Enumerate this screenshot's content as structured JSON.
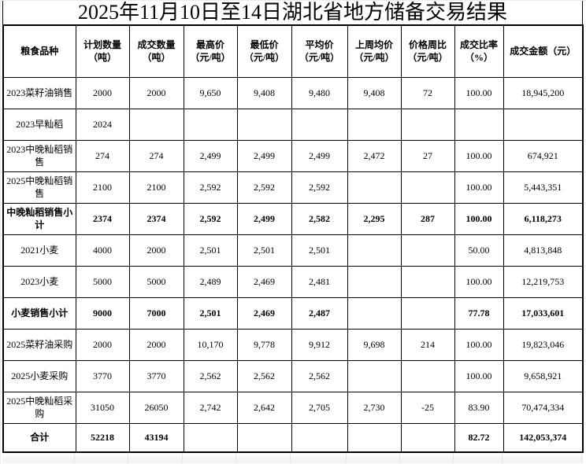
{
  "title": "2025年11月10日至14日湖北省地方储备交易结果",
  "colors": {
    "text": "#000000",
    "table_border": "#000000",
    "background": "#ffffff",
    "grid_remnant": "#e6e6e6"
  },
  "table": {
    "headers": [
      {
        "lines": [
          "粮食品种"
        ]
      },
      {
        "lines": [
          "计划数量",
          "（吨）"
        ]
      },
      {
        "lines": [
          "成交数量",
          "（吨）"
        ]
      },
      {
        "lines": [
          "最高价",
          "（元/吨）"
        ]
      },
      {
        "lines": [
          "最低价",
          "（元/吨）"
        ]
      },
      {
        "lines": [
          "平均价",
          "（元/吨）"
        ]
      },
      {
        "lines": [
          "上周均价",
          "（元/吨）"
        ]
      },
      {
        "lines": [
          "价格周比",
          "（元/吨）"
        ]
      },
      {
        "lines": [
          "成交比率",
          "（%）"
        ]
      },
      {
        "lines": [
          "成交金额（元）"
        ]
      }
    ],
    "rows": [
      {
        "bold": false,
        "cells": [
          "2023菜籽油销售",
          "2000",
          "2000",
          "9,650",
          "9,408",
          "9,480",
          "9,408",
          "72",
          "100.00",
          "18,945,200"
        ]
      },
      {
        "bold": false,
        "cells": [
          "2023早籼稻",
          "2024",
          "",
          "",
          "",
          "",
          "",
          "",
          "",
          ""
        ]
      },
      {
        "bold": false,
        "cells": [
          "2023中晚籼稻销售",
          "274",
          "274",
          "2,499",
          "2,499",
          "2,499",
          "2,472",
          "27",
          "100.00",
          "674,921"
        ]
      },
      {
        "bold": false,
        "cells": [
          "2025中晚籼稻销售",
          "2100",
          "2100",
          "2,592",
          "2,592",
          "2,592",
          "",
          "",
          "100.00",
          "5,443,351"
        ]
      },
      {
        "bold": true,
        "cells": [
          "中晚籼稻销售小计",
          "2374",
          "2374",
          "2,592",
          "2,499",
          "2,582",
          "2,295",
          "287",
          "100.00",
          "6,118,273"
        ]
      },
      {
        "bold": false,
        "cells": [
          "2021小麦",
          "4000",
          "2000",
          "2,501",
          "2,501",
          "2,501",
          "",
          "",
          "50.00",
          "4,813,848"
        ]
      },
      {
        "bold": false,
        "cells": [
          "2023小麦",
          "5000",
          "5000",
          "2,489",
          "2,469",
          "2,481",
          "",
          "",
          "100.00",
          "12,219,753"
        ]
      },
      {
        "bold": true,
        "cells": [
          "小麦销售小计",
          "9000",
          "7000",
          "2,501",
          "2,469",
          "2,487",
          "",
          "",
          "77.78",
          "17,033,601"
        ]
      },
      {
        "bold": false,
        "cells": [
          "2025菜籽油采购",
          "2000",
          "2000",
          "10,170",
          "9,778",
          "9,912",
          "9,698",
          "214",
          "100.00",
          "19,823,046"
        ]
      },
      {
        "bold": false,
        "cells": [
          "2025小麦采购",
          "3770",
          "3770",
          "2,562",
          "2,562",
          "2,562",
          "",
          "",
          "100.00",
          "9,658,921"
        ]
      },
      {
        "bold": false,
        "cells": [
          "2025中晚籼稻采购",
          "31050",
          "26050",
          "2,742",
          "2,642",
          "2,705",
          "2,730",
          "-25",
          "83.90",
          "70,474,334"
        ]
      },
      {
        "bold": true,
        "cells": [
          "合计",
          "52218",
          "43194",
          "",
          "",
          "",
          "",
          "",
          "82.72",
          "142,053,374"
        ]
      }
    ]
  }
}
